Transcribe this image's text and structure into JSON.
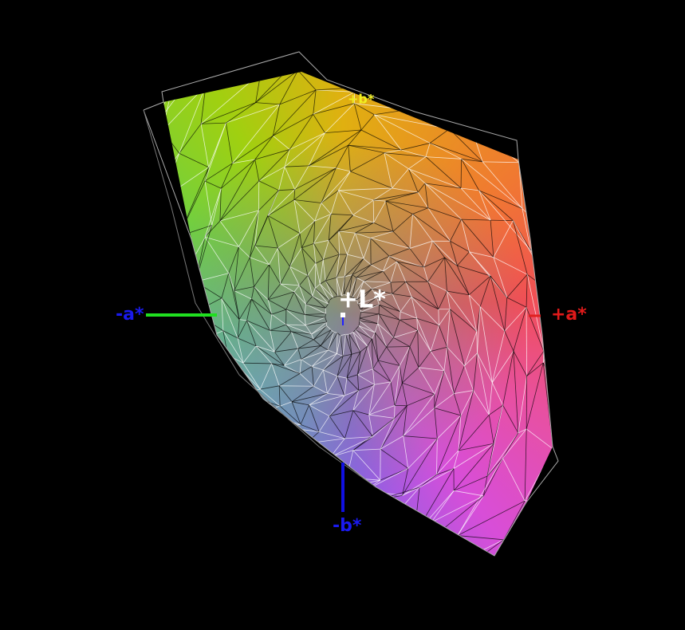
{
  "axes": {
    "minus_a": "-a*",
    "plus_a": "+a*",
    "minus_b": "-b*",
    "plus_b": "+b*",
    "plus_L": "+L*"
  }
}
